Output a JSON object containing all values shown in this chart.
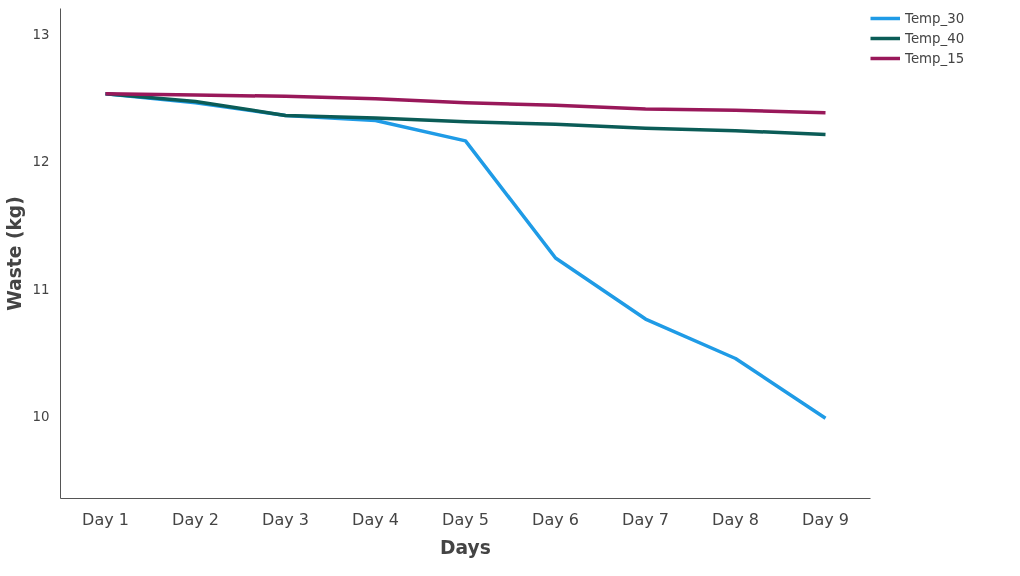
{
  "chart_data": {
    "type": "line",
    "xlabel": "Days",
    "ylabel": "Waste (kg)",
    "categories": [
      "Day 1",
      "Day 2",
      "Day 3",
      "Day 4",
      "Day 5",
      "Day 6",
      "Day 7",
      "Day 8",
      "Day 9"
    ],
    "ylim": [
      9.35,
      13.2
    ],
    "yticks": [
      10,
      11,
      12,
      13
    ],
    "grid": false,
    "legend": "top right",
    "marker": "none",
    "line_style": "solid",
    "series": [
      {
        "name": "Temp_30",
        "color": "#1f9be6",
        "values": [
          12.53,
          12.46,
          12.36,
          12.32,
          12.16,
          11.24,
          10.76,
          10.45,
          9.98
        ]
      },
      {
        "name": "Temp_40",
        "color": "#0b5c57",
        "values": [
          12.53,
          12.47,
          12.36,
          12.34,
          12.31,
          12.29,
          12.26,
          12.24,
          12.21
        ]
      },
      {
        "name": "Temp_15",
        "color": "#99185a",
        "values": [
          12.53,
          12.52,
          12.51,
          12.49,
          12.46,
          12.44,
          12.41,
          12.4,
          12.38
        ]
      }
    ]
  }
}
